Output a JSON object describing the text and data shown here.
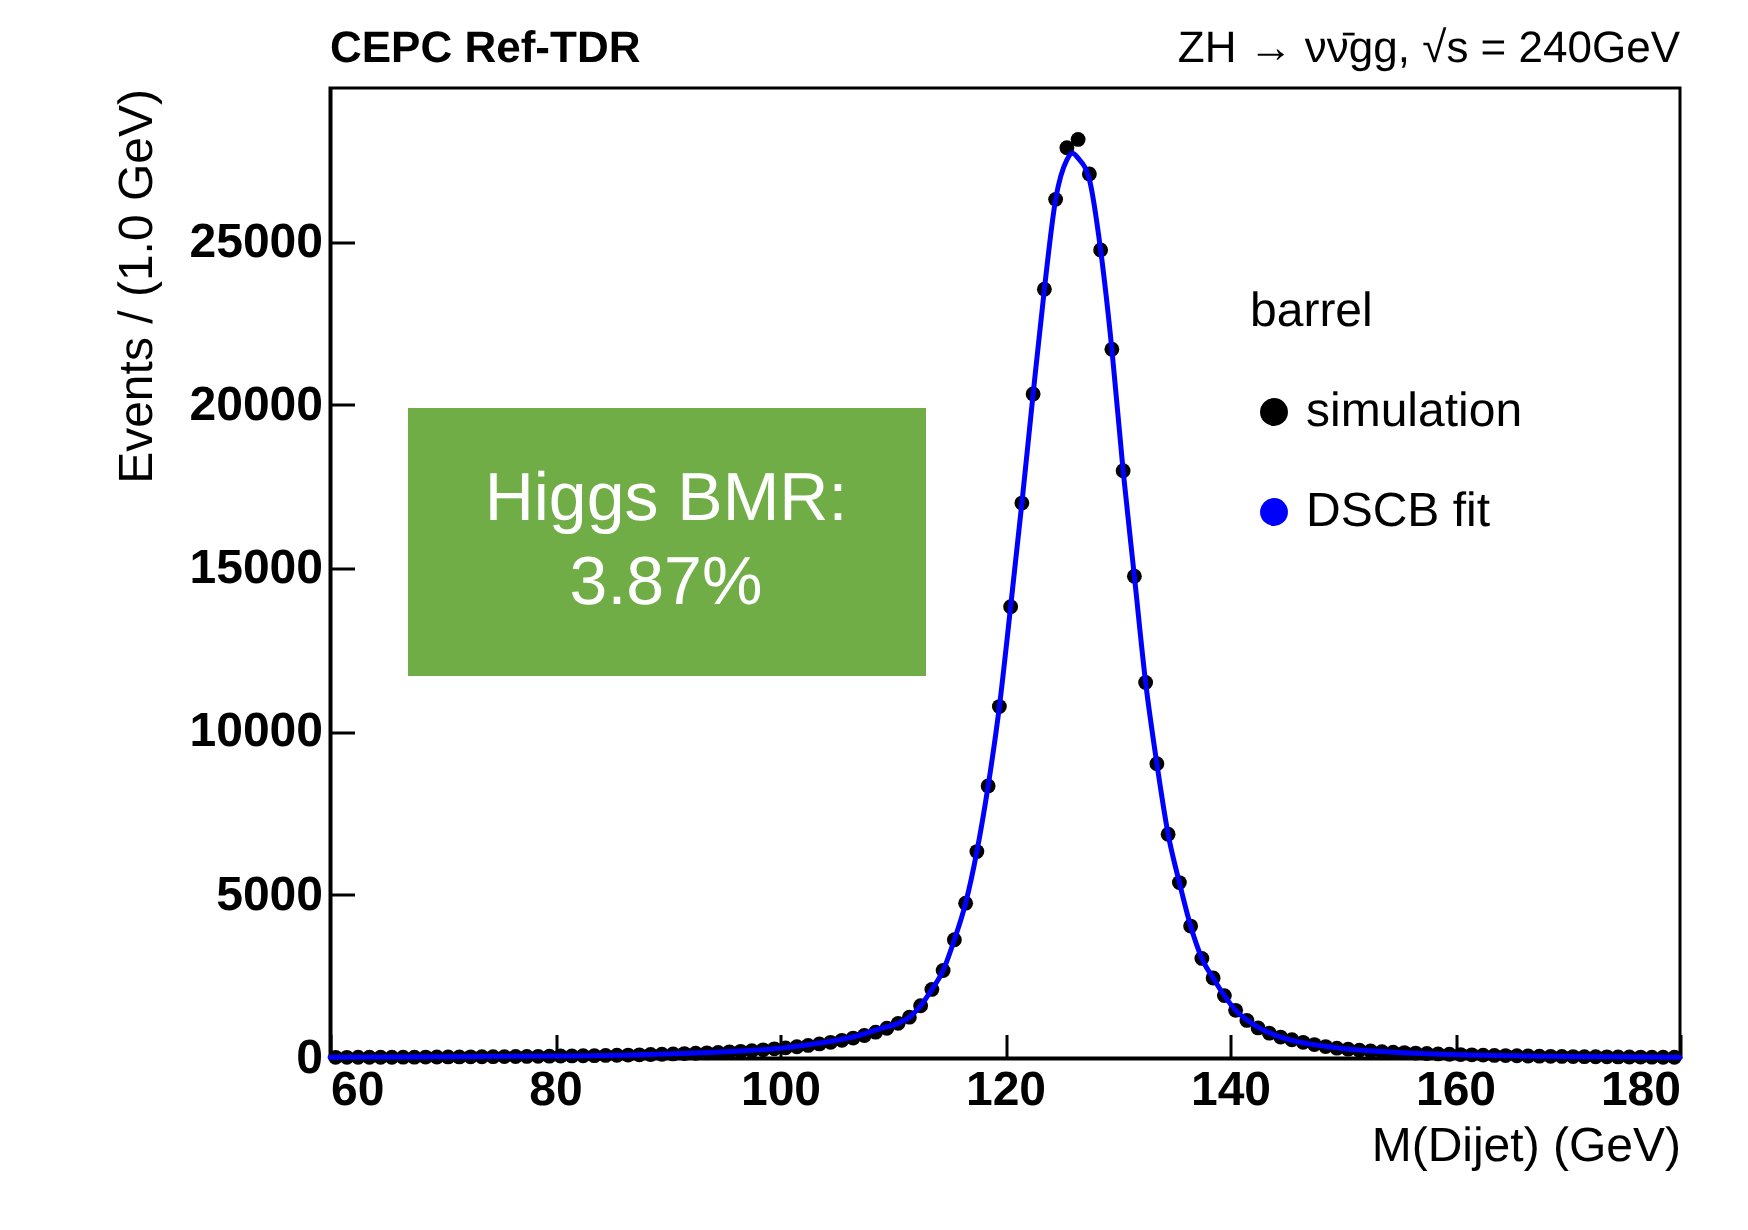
{
  "chart_data": {
    "type": "scatter",
    "title": "CEPC Ref-TDR",
    "subtitle": "ZH → νν̄gg, √s = 240GeV",
    "xlabel": "M(Dijet) (GeV)",
    "ylabel": "Events / (1.0 GeV)",
    "legend_title": "barrel",
    "legend": "right",
    "annotations": [
      "Higgs BMR:\n3.87%"
    ],
    "xlim": [
      60,
      180
    ],
    "xticks": [
      60,
      80,
      100,
      120,
      140,
      160,
      180
    ],
    "ylim": [
      0,
      29700
    ],
    "yticks": [
      0,
      5000,
      10000,
      15000,
      20000,
      25000
    ],
    "grid": false,
    "series": [
      {
        "name": "simulation",
        "marker": "circle",
        "color": "#000000",
        "x": [
          60.5,
          61.5,
          62.5,
          63.5,
          64.5,
          65.5,
          66.5,
          67.5,
          68.5,
          69.5,
          70.5,
          71.5,
          72.5,
          73.5,
          74.5,
          75.5,
          76.5,
          77.5,
          78.5,
          79.5,
          80.5,
          81.5,
          82.5,
          83.5,
          84.5,
          85.5,
          86.5,
          87.5,
          88.5,
          89.5,
          90.5,
          91.5,
          92.5,
          93.5,
          94.5,
          95.5,
          96.5,
          97.5,
          98.5,
          99.5,
          100.5,
          101.5,
          102.5,
          103.5,
          104.5,
          105.5,
          106.5,
          107.5,
          108.5,
          109.5,
          110.5,
          111.5,
          112.5,
          113.5,
          114.5,
          115.5,
          116.5,
          117.5,
          118.5,
          119.5,
          120.5,
          121.5,
          122.5,
          123.5,
          124.5,
          125.5,
          126.5,
          127.5,
          128.5,
          129.5,
          130.5,
          131.5,
          132.5,
          133.5,
          134.5,
          135.5,
          136.5,
          137.5,
          138.5,
          139.5,
          140.5,
          141.5,
          142.5,
          143.5,
          144.5,
          145.5,
          146.5,
          147.5,
          148.5,
          149.5,
          150.5,
          151.5,
          152.5,
          153.5,
          154.5,
          155.5,
          156.5,
          157.5,
          158.5,
          159.5,
          160.5,
          161.5,
          162.5,
          163.5,
          164.5,
          165.5,
          166.5,
          167.5,
          168.5,
          169.5,
          170.5,
          171.5,
          172.5,
          173.5,
          174.5,
          175.5,
          176.5,
          177.5,
          178.5,
          179.5
        ],
        "values": [
          20,
          20,
          22,
          22,
          24,
          24,
          26,
          26,
          28,
          30,
          32,
          34,
          36,
          38,
          40,
          42,
          45,
          48,
          52,
          56,
          60,
          64,
          68,
          72,
          78,
          84,
          90,
          98,
          106,
          115,
          125,
          135,
          146,
          158,
          172,
          188,
          205,
          225,
          250,
          280,
          310,
          345,
          385,
          430,
          480,
          540,
          610,
          690,
          790,
          910,
          1060,
          1250,
          1600,
          2100,
          2680,
          3620,
          4740,
          6320,
          8330,
          10760,
          13820,
          16990,
          20330,
          23540,
          26290,
          27870,
          28125,
          27070,
          24740,
          21700,
          17980,
          14750,
          11500,
          9010,
          6850,
          5370,
          4040,
          3050,
          2450,
          1910,
          1460,
          1150,
          920,
          760,
          640,
          560,
          480,
          410,
          350,
          300,
          270,
          240,
          215,
          195,
          180,
          165,
          150,
          138,
          126,
          115,
          105,
          96,
          88,
          80,
          74,
          68,
          62,
          57,
          52,
          48,
          44,
          41,
          38,
          35,
          32,
          30,
          28,
          26,
          24,
          22
        ]
      },
      {
        "name": "DSCB fit",
        "type": "line",
        "marker": "none",
        "line_style": "solid",
        "color": "#0000ff",
        "x": [
          60,
          70,
          80,
          90,
          95,
          100,
          104,
          107,
          109,
          110.5,
          111.5,
          112.5,
          113.5,
          114.5,
          115.5,
          116.5,
          117.5,
          118.5,
          119.5,
          120.5,
          121.5,
          122.5,
          123.5,
          124.5,
          125.5,
          126,
          126.5,
          127.5,
          128.5,
          129.5,
          130.5,
          131.5,
          132.5,
          133.5,
          134.5,
          135.5,
          136.5,
          137.5,
          138.5,
          139.5,
          140.5,
          142,
          144,
          146,
          148,
          150,
          155,
          160,
          170,
          180
        ],
        "values": [
          20,
          40,
          60,
          125,
          188,
          300,
          480,
          690,
          910,
          1060,
          1250,
          1600,
          2100,
          2680,
          3620,
          4740,
          6320,
          8330,
          10760,
          13820,
          16990,
          20330,
          23540,
          26290,
          27500,
          27700,
          27550,
          26900,
          24740,
          21700,
          17980,
          14750,
          11500,
          9010,
          6850,
          5370,
          4040,
          3050,
          2450,
          1910,
          1460,
          1050,
          700,
          500,
          380,
          290,
          170,
          105,
          46,
          22
        ]
      }
    ]
  }
}
